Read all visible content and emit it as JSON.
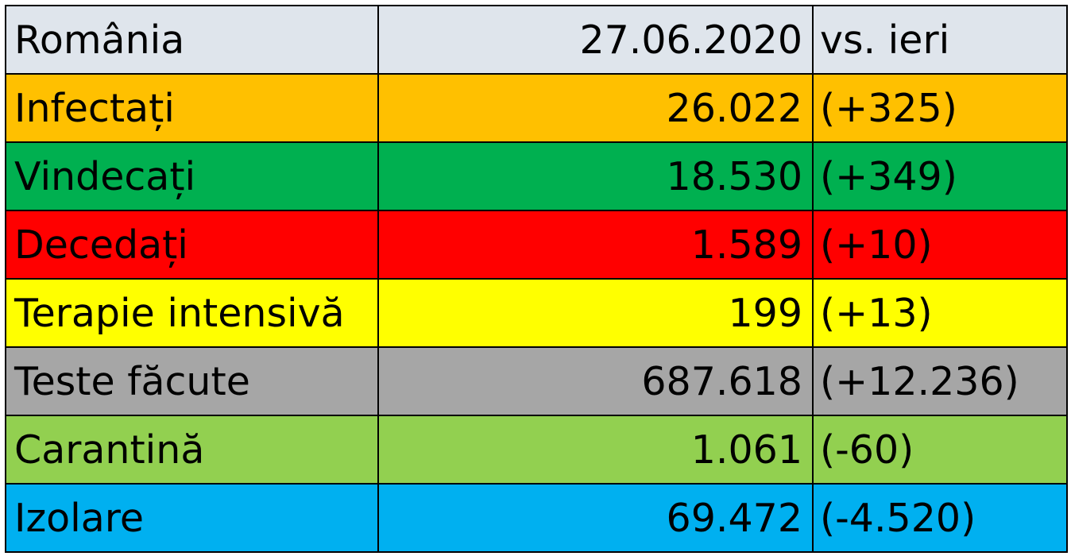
{
  "header": {
    "label": "România",
    "date": "27.06.2020",
    "comparison": "vs. ieri"
  },
  "rows": [
    {
      "label": "Infectați",
      "value": "26.022",
      "delta": "(+325)",
      "color": "#ffc000"
    },
    {
      "label": "Vindecați",
      "value": "18.530",
      "delta": "(+349)",
      "color": "#00b050"
    },
    {
      "label": "Decedați",
      "value": "1.589",
      "delta": "(+10)",
      "color": "#ff0000"
    },
    {
      "label": "Terapie intensivă",
      "value": "199",
      "delta": "(+13)",
      "color": "#ffff00"
    },
    {
      "label": "Teste făcute",
      "value": "687.618",
      "delta": "(+12.236)",
      "color": "#a6a6a6"
    },
    {
      "label": "Carantină",
      "value": "1.061",
      "delta": "(-60)",
      "color": "#92d050"
    },
    {
      "label": "Izolare",
      "value": "69.472",
      "delta": "(-4.520)",
      "color": "#00b0f0"
    }
  ],
  "colors": {
    "header_bg": "#dfe5ec",
    "border": "#000000"
  }
}
